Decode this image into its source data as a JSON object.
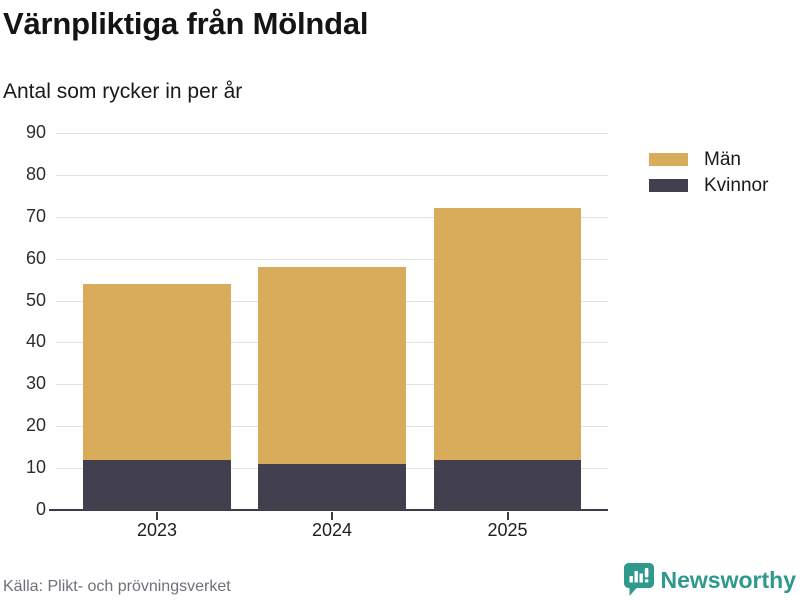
{
  "header": {
    "title": "Värnpliktiga från Mölndal",
    "subtitle": "Antal som rycker in per år"
  },
  "legend": {
    "position": "right-top",
    "items": [
      {
        "label": "Män",
        "color": "#d9ac5c"
      },
      {
        "label": "Kvinnor",
        "color": "#42404e"
      }
    ]
  },
  "footer": {
    "source": "Källa: Plikt- och prövningsverket",
    "brand": "Newsworthy",
    "brand_color": "#2f998d",
    "brand_icon": "bar-chart-speech-bubble-icon"
  },
  "colors": {
    "men": "#d9ac5c",
    "women": "#42404e",
    "grid": "#e1e1e1",
    "axis": "#3b3a45",
    "teal": "#2f998d"
  },
  "chart_data": {
    "type": "bar",
    "stacked": true,
    "title": "Värnpliktiga från Mölndal",
    "subtitle": "Antal som rycker in per år",
    "xlabel": "",
    "ylabel": "",
    "categories": [
      "2023",
      "2024",
      "2025"
    ],
    "series": [
      {
        "name": "Män",
        "color": "#d9ac5c",
        "values": [
          42,
          47,
          60
        ]
      },
      {
        "name": "Kvinnor",
        "color": "#42404e",
        "values": [
          12,
          11,
          12
        ]
      }
    ],
    "stack_order_bottom_to_top": [
      "Kvinnor",
      "Män"
    ],
    "totals": [
      54,
      58,
      72
    ],
    "ylim": [
      0,
      90
    ],
    "yticks": [
      0,
      10,
      20,
      30,
      40,
      50,
      60,
      70,
      80,
      90
    ],
    "grid": true,
    "legend_position": "right-top",
    "layout": {
      "bar_centers_pct": [
        18.3,
        50,
        81.8
      ],
      "bar_width_pct": 26.8
    }
  }
}
